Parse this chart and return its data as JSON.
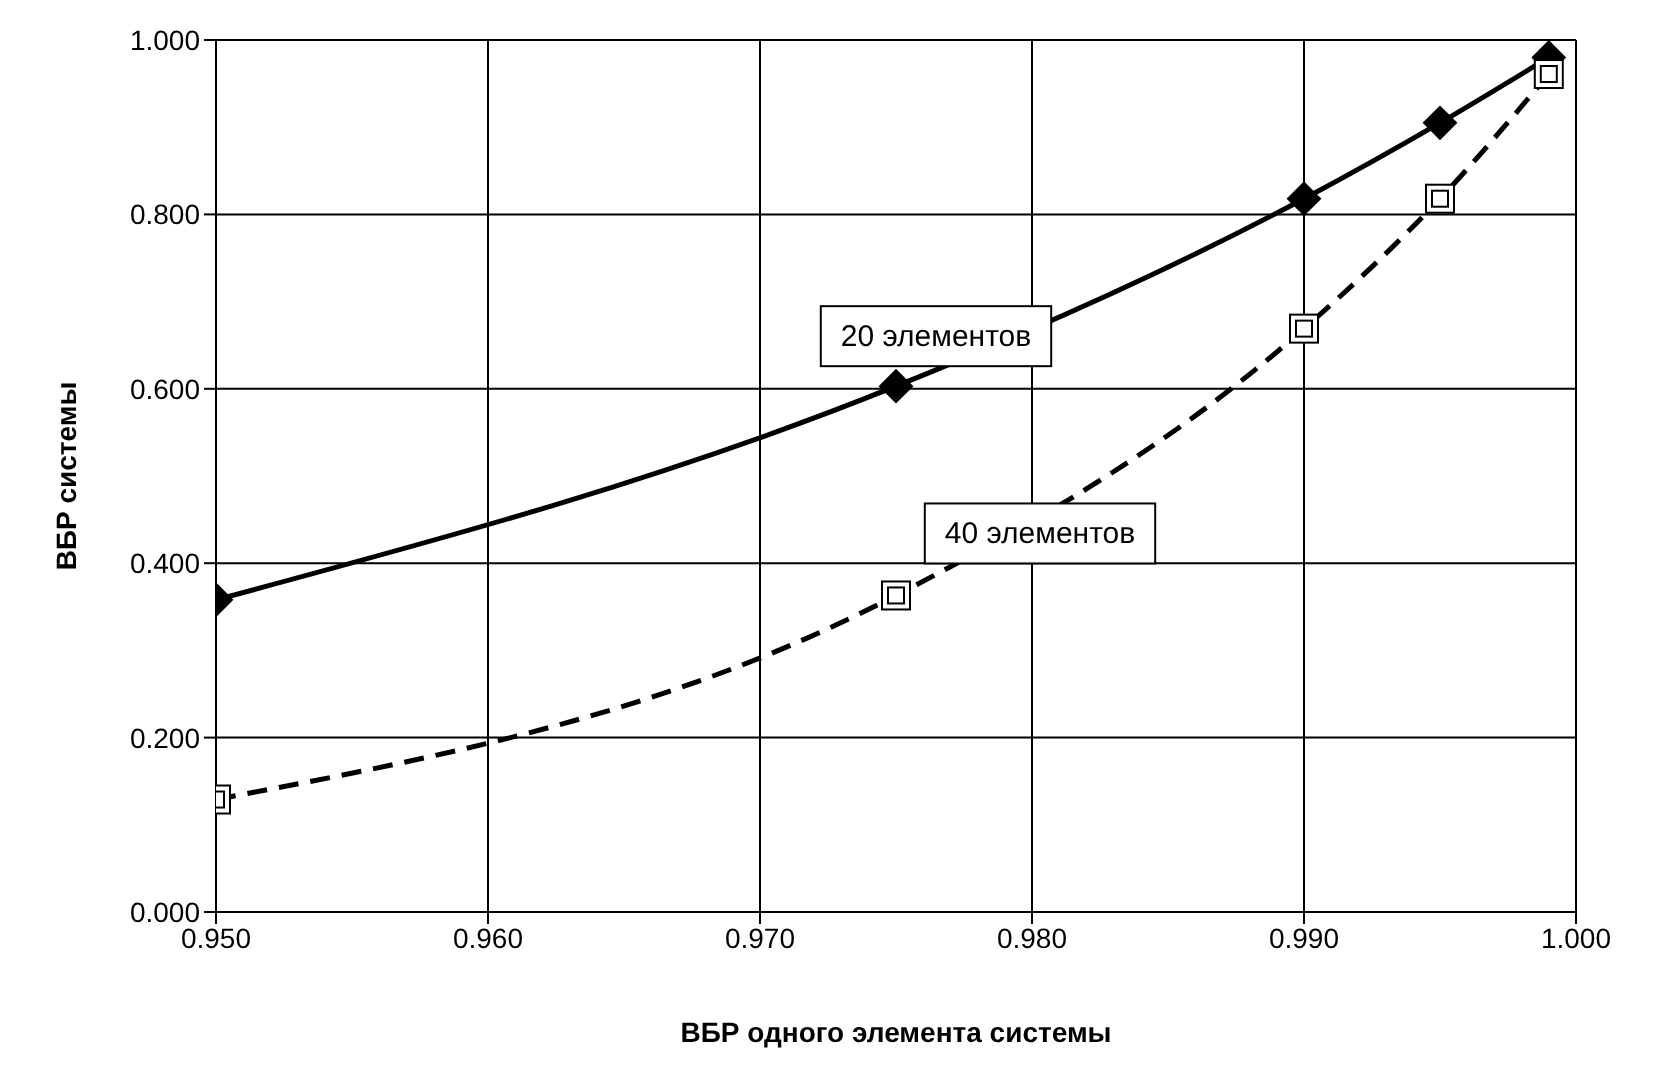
{
  "chart_data": {
    "type": "line",
    "xlabel": "ВБР одного элемента системы",
    "ylabel": "ВБР системы",
    "x": [
      0.95,
      0.975,
      0.99,
      0.995,
      0.999
    ],
    "series": [
      {
        "name": "20 элементов",
        "color": "#000000",
        "values": [
          0.358,
          0.603,
          0.818,
          0.905,
          0.98
        ],
        "marker": "diamond",
        "line_style": "solid"
      },
      {
        "name": "40 элементов",
        "color": "#000000",
        "values": [
          0.129,
          0.363,
          0.669,
          0.818,
          0.961
        ],
        "marker": "square",
        "line_style": "dashed"
      }
    ],
    "xlim": [
      0.95,
      1.0
    ],
    "xticks": [
      {
        "value": 0.95,
        "label": "0.950"
      },
      {
        "value": 0.96,
        "label": "0.960"
      },
      {
        "value": 0.97,
        "label": "0.970"
      },
      {
        "value": 0.98,
        "label": "0.980"
      },
      {
        "value": 0.99,
        "label": "0.990"
      },
      {
        "value": 1.0,
        "label": "1.000"
      }
    ],
    "ylim": [
      0,
      1
    ],
    "yticks": [
      {
        "value": 0,
        "label": "0.000"
      },
      {
        "value": 0.2,
        "label": "0.200"
      },
      {
        "value": 0.4,
        "label": "0.400"
      },
      {
        "value": 0.6,
        "label": "0.600"
      },
      {
        "value": 0.8,
        "label": "0.800"
      },
      {
        "value": 1,
        "label": "1.000"
      }
    ],
    "grid": true
  }
}
